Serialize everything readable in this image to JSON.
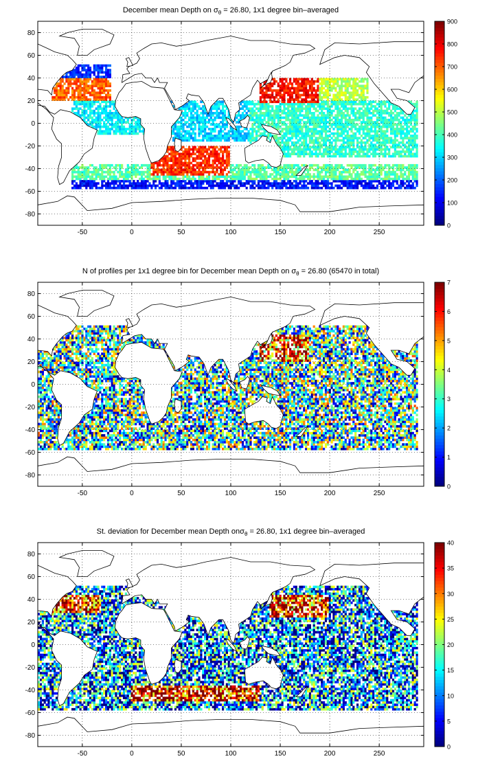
{
  "chart_data": [
    {
      "type": "heatmap",
      "title_prefix": "December mean Depth on ",
      "title_sigma": "σ",
      "title_sub": "θ",
      "title_suffix": " = 26.80, 1x1 degree bin–averaged",
      "xticks": [
        -50,
        0,
        50,
        100,
        150,
        200,
        250
      ],
      "yticks": [
        80,
        60,
        40,
        20,
        0,
        -20,
        -40,
        -60,
        -80
      ],
      "xlim": [
        -95,
        295
      ],
      "ylim": [
        -90,
        90
      ],
      "colorbar_ticks": [
        900,
        800,
        700,
        600,
        500,
        400,
        300,
        200,
        100,
        0
      ],
      "clim": [
        0,
        900
      ],
      "colormap": "jet",
      "grid": true,
      "field_regions": [
        {
          "lon": [
            -80,
            -20
          ],
          "lat": [
            20,
            40
          ],
          "value": 700
        },
        {
          "lon": [
            -80,
            -20
          ],
          "lat": [
            40,
            52
          ],
          "value": 150
        },
        {
          "lon": [
            130,
            190
          ],
          "lat": [
            18,
            40
          ],
          "value": 780
        },
        {
          "lon": [
            190,
            240
          ],
          "lat": [
            20,
            40
          ],
          "value": 500
        },
        {
          "lon": [
            20,
            100
          ],
          "lat": [
            -45,
            -20
          ],
          "value": 750
        },
        {
          "lon": [
            -60,
            20
          ],
          "lat": [
            -10,
            20
          ],
          "value": 330
        },
        {
          "lon": [
            40,
            120
          ],
          "lat": [
            -15,
            20
          ],
          "value": 300
        },
        {
          "lon": [
            120,
            290
          ],
          "lat": [
            -30,
            20
          ],
          "value": 380
        },
        {
          "lon": [
            -60,
            290
          ],
          "lat": [
            -50,
            -35
          ],
          "value": 420
        },
        {
          "lon": [
            -60,
            290
          ],
          "lat": [
            -58,
            -50
          ],
          "value": 120
        }
      ]
    },
    {
      "type": "heatmap",
      "title_prefix": "N of profiles per 1x1 degree bin for December mean Depth on ",
      "title_sigma": "σ",
      "title_sub": "θ",
      "title_suffix": " = 26.80 (65470 in total)",
      "xticks": [
        -50,
        0,
        50,
        100,
        150,
        200,
        250
      ],
      "yticks": [
        80,
        60,
        40,
        20,
        0,
        -20,
        -40,
        -60,
        -80
      ],
      "xlim": [
        -95,
        295
      ],
      "ylim": [
        -90,
        90
      ],
      "colorbar_ticks": [
        7,
        6,
        5,
        4,
        3,
        2,
        1,
        0
      ],
      "clim": [
        0,
        7
      ],
      "colormap": "jet",
      "grid": true,
      "field_regions": [
        {
          "lon": [
            130,
            180
          ],
          "lat": [
            20,
            45
          ],
          "value": 5.5
        },
        {
          "lon": [
            -95,
            290
          ],
          "lat": [
            -58,
            52
          ],
          "value": 2.5
        }
      ]
    },
    {
      "type": "heatmap",
      "title_prefix": "St. deviation for December mean Depth on",
      "title_sigma": "σ",
      "title_sub": "θ",
      "title_suffix": " = 26.80, 1x1 degree bin–averaged",
      "xticks": [
        -50,
        0,
        50,
        100,
        150,
        200,
        250
      ],
      "yticks": [
        80,
        60,
        40,
        20,
        0,
        -20,
        -40,
        -60,
        -80
      ],
      "xlim": [
        -95,
        295
      ],
      "ylim": [
        -90,
        90
      ],
      "colorbar_ticks": [
        40,
        35,
        30,
        25,
        20,
        15,
        10,
        5,
        0
      ],
      "clim": [
        0,
        40
      ],
      "colormap": "jet",
      "grid": true,
      "field_regions": [
        {
          "lon": [
            -80,
            -30
          ],
          "lat": [
            28,
            45
          ],
          "value": 34
        },
        {
          "lon": [
            140,
            200
          ],
          "lat": [
            25,
            45
          ],
          "value": 33
        },
        {
          "lon": [
            0,
            130
          ],
          "lat": [
            -50,
            -35
          ],
          "value": 35
        },
        {
          "lon": [
            -95,
            290
          ],
          "lat": [
            -58,
            52
          ],
          "value": 9
        }
      ]
    }
  ]
}
